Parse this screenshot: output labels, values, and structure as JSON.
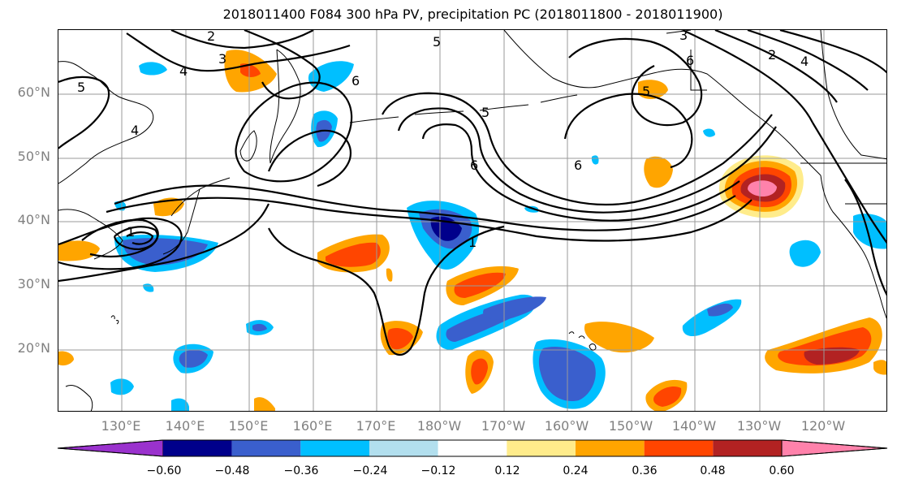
{
  "title": "2018011400 F084 300 hPa PV, precipitation PC (2018011800 - 2018011900)",
  "lat_labels": [
    "60°N",
    "50°N",
    "40°N",
    "30°N",
    "20°N"
  ],
  "lon_labels": [
    "130°E",
    "140°E",
    "150°E",
    "160°E",
    "170°E",
    "180°W",
    "170°W",
    "160°W",
    "150°W",
    "140°W",
    "130°W",
    "120°W"
  ],
  "colorbar": {
    "colors": [
      "#9a32cd",
      "#00008b",
      "#3a5fcd",
      "#00bfff",
      "#b2dfee",
      "#ffffff",
      "#ffec8b",
      "#ffa500",
      "#ff4500",
      "#b22222",
      "#ff82ab"
    ],
    "tick_labels": [
      "−0.60",
      "−0.48",
      "−0.36",
      "−0.24",
      "−0.12",
      "0.12",
      "0.24",
      "0.36",
      "0.48",
      "0.60"
    ]
  },
  "contour_labels": [
    "2",
    "3",
    "4",
    "5",
    "6",
    "5",
    "6",
    "5",
    "3",
    "6",
    "2",
    "4",
    "6",
    "5",
    "4",
    "1",
    "1"
  ]
}
